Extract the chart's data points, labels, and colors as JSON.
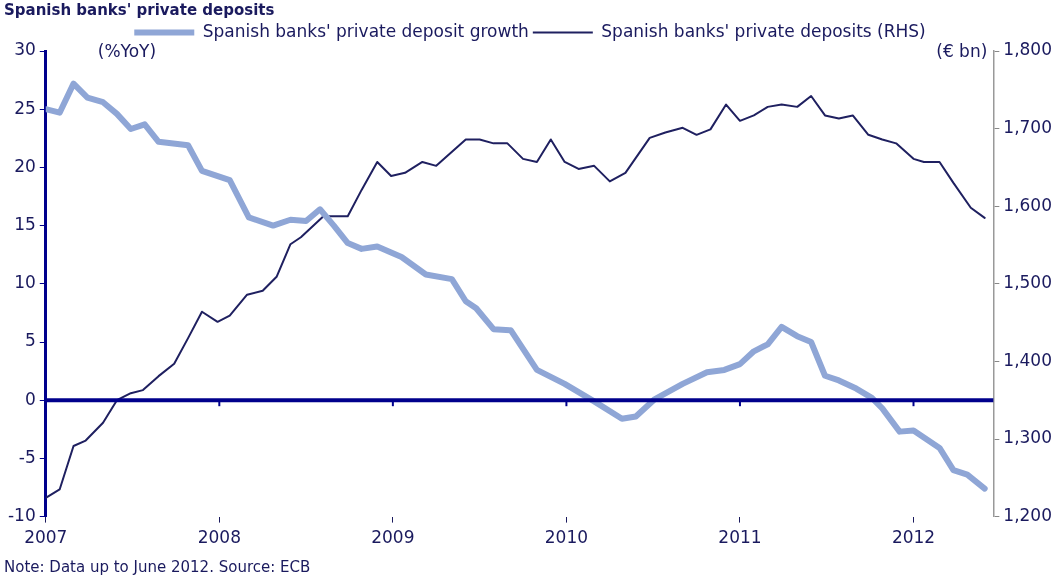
{
  "chart_data": {
    "type": "line",
    "title": "Spanish banks' private deposits",
    "ylabel": "(%YoY)",
    "y2label": "(€ bn)",
    "xlim": [
      2007,
      2012.46
    ],
    "xticks": [
      2007,
      2008,
      2009,
      2010,
      2011,
      2012
    ],
    "ylim": [
      -10,
      30
    ],
    "yticks": [
      -10,
      -5,
      0,
      5,
      10,
      15,
      20,
      25,
      30
    ],
    "y2lim": [
      1200,
      1800
    ],
    "y2ticks": [
      {
        "value": 1200,
        "label": "1,200"
      },
      {
        "value": 1300,
        "label": "1,300"
      },
      {
        "value": 1400,
        "label": "1,400"
      },
      {
        "value": 1500,
        "label": "1,500"
      },
      {
        "value": 1600,
        "label": "1,600"
      },
      {
        "value": 1700,
        "label": "1,700"
      },
      {
        "value": 1800,
        "label": "1,800"
      }
    ],
    "grid": false,
    "legend": "top",
    "marker": "none",
    "line_style": "solid",
    "ref_lines": [
      {
        "axis": "y",
        "value": 0,
        "color": "#00008c"
      }
    ],
    "annotations": [
      "Note: Data up to June 2012. Source: ECB"
    ],
    "series": [
      {
        "name": "Spanish banks' private deposit growth",
        "color": "#8fa6d6",
        "x": [
          2007.0,
          2007.08,
          2007.16,
          2007.24,
          2007.33,
          2007.41,
          2007.49,
          2007.57,
          2007.65,
          2007.82,
          2007.9,
          2008.06,
          2008.17,
          2008.31,
          2008.41,
          2008.5,
          2008.58,
          2008.66,
          2008.74,
          2008.82,
          2008.91,
          2009.05,
          2009.19,
          2009.34,
          2009.42,
          2009.48,
          2009.58,
          2009.68,
          2009.83,
          2009.99,
          2010.16,
          2010.32,
          2010.4,
          2010.51,
          2010.67,
          2010.81,
          2010.91,
          2011.0,
          2011.08,
          2011.16,
          2011.24,
          2011.33,
          2011.41,
          2011.49,
          2011.57,
          2011.67,
          2011.76,
          2011.82,
          2011.92,
          2012.0,
          2012.15,
          2012.23,
          2012.31,
          2012.41
        ],
        "values": [
          25.0,
          24.7,
          27.2,
          26.0,
          25.6,
          24.6,
          23.3,
          23.7,
          22.2,
          21.9,
          19.7,
          18.9,
          15.7,
          15.0,
          15.5,
          15.4,
          16.4,
          15.0,
          13.5,
          13.0,
          13.2,
          12.3,
          10.8,
          10.4,
          8.5,
          7.9,
          6.1,
          6.0,
          2.6,
          1.4,
          -0.1,
          -1.6,
          -1.4,
          0.1,
          1.4,
          2.4,
          2.6,
          3.1,
          4.2,
          4.8,
          6.3,
          5.5,
          5.0,
          2.1,
          1.7,
          1.0,
          0.2,
          -0.7,
          -2.7,
          -2.6,
          -4.1,
          -6.0,
          -6.4,
          -7.6
        ]
      },
      {
        "name": "Spanish banks' private deposits (RHS)",
        "color": "#1f2060",
        "axis": "y2",
        "x": [
          2007.0,
          2007.08,
          2007.16,
          2007.23,
          2007.33,
          2007.41,
          2007.49,
          2007.56,
          2007.65,
          2007.74,
          2007.82,
          2007.9,
          2007.99,
          2008.06,
          2008.16,
          2008.25,
          2008.33,
          2008.41,
          2008.47,
          2008.6,
          2008.74,
          2008.82,
          2008.91,
          2008.99,
          2009.07,
          2009.17,
          2009.25,
          2009.42,
          2009.5,
          2009.58,
          2009.66,
          2009.75,
          2009.83,
          2009.91,
          2009.99,
          2010.07,
          2010.16,
          2010.25,
          2010.34,
          2010.48,
          2010.57,
          2010.67,
          2010.75,
          2010.83,
          2010.92,
          2011.0,
          2011.08,
          2011.16,
          2011.24,
          2011.33,
          2011.41,
          2011.49,
          2011.57,
          2011.65,
          2011.74,
          2011.82,
          2011.9,
          2012.0,
          2012.06,
          2012.15,
          2012.23,
          2012.33,
          2012.41
        ],
        "values": [
          1224,
          1235,
          1291,
          1298,
          1321,
          1350,
          1359,
          1363,
          1381,
          1397,
          1430,
          1464,
          1451,
          1459,
          1486,
          1491,
          1509,
          1551,
          1560,
          1587,
          1587,
          1621,
          1657,
          1639,
          1643,
          1657,
          1652,
          1686,
          1686,
          1681,
          1681,
          1661,
          1657,
          1686,
          1657,
          1648,
          1652,
          1632,
          1643,
          1688,
          1695,
          1701,
          1692,
          1699,
          1731,
          1710,
          1717,
          1728,
          1731,
          1728,
          1742,
          1717,
          1713,
          1717,
          1692,
          1686,
          1681,
          1661,
          1657,
          1657,
          1630,
          1598,
          1585
        ]
      }
    ]
  }
}
